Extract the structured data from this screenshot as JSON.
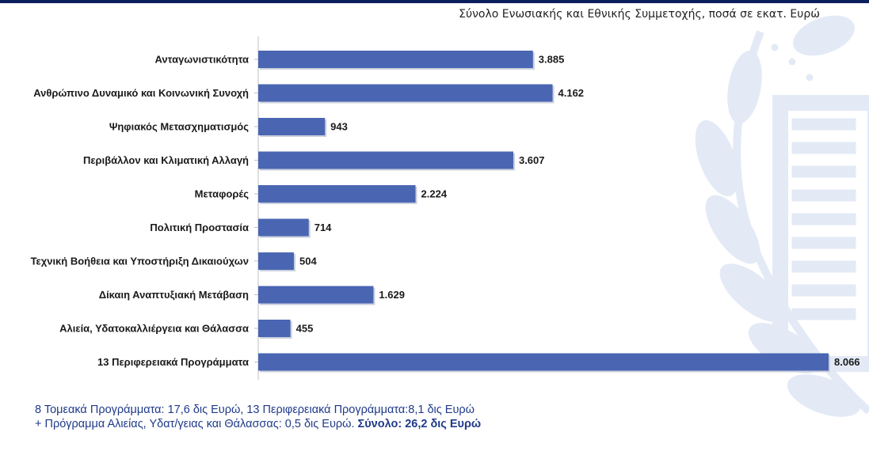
{
  "subtitle": "Σύνολο Ενωσιακής και Εθνικής Συμμετοχής, ποσά σε εκατ. Ευρώ",
  "chart_data": {
    "type": "bar",
    "orientation": "horizontal",
    "categories": [
      "Ανταγωνιστικότητα",
      "Ανθρώπινο Δυναμικό και Κοινωνική Συνοχή",
      "Ψηφιακός Μετασχηματισμός",
      "Περιβάλλον και Κλιματική Αλλαγή",
      "Μεταφορές",
      "Πολιτική Προστασία",
      "Τεχνική Βοήθεια και Υποστήριξη Δικαιούχων",
      "Δίκαιη Αναπτυξιακή Μετάβαση",
      "Αλιεία, Υδατοκαλλιέργεια και Θάλασσα",
      "13 Περιφερειακά Προγράμματα"
    ],
    "values": [
      3885,
      4162,
      943,
      3607,
      2224,
      714,
      504,
      1629,
      455,
      8066
    ],
    "data_labels": [
      "3.885",
      "4.162",
      "943",
      "3.607",
      "2.224",
      "714",
      "504",
      "1.629",
      "455",
      "8.066"
    ],
    "xlim": [
      0,
      8066
    ],
    "bar_color": "#4a66b3",
    "grid": false,
    "legend": "none"
  },
  "footnote": {
    "line1": "8 Τομεακά Προγράμματα: 17,6 δις Ευρώ, 13 Περιφερειακά Προγράμματα:8,1 δις Ευρώ",
    "line2": "+ Πρόγραμμα Αλιείας, Υδατ/γειας και Θάλασσας: 0,5 δις Ευρώ. ",
    "line2_bold": "Σύνολο: 26,2 δις Ευρώ"
  },
  "colors": {
    "header_bar": "#0b1f5c",
    "footnote_text": "#1f3a8a",
    "emblem": "#dde6f4"
  }
}
